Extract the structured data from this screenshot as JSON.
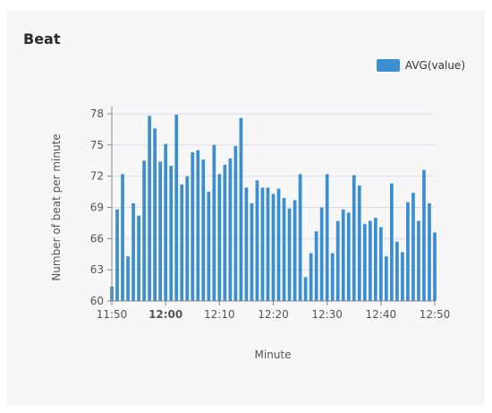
{
  "widget": {
    "title": "Beat"
  },
  "chart_data": {
    "type": "bar",
    "title": "",
    "xlabel": "Minute",
    "ylabel": "Number of beat per minute",
    "ylim": [
      60,
      78
    ],
    "y_ticks": [
      60,
      63,
      66,
      69,
      72,
      75,
      78
    ],
    "x_ticks": [
      {
        "label": "11:50",
        "index": 0,
        "bold": false
      },
      {
        "label": "12:00",
        "index": 10,
        "bold": true
      },
      {
        "label": "12:10",
        "index": 20,
        "bold": false
      },
      {
        "label": "12:20",
        "index": 30,
        "bold": false
      },
      {
        "label": "12:30",
        "index": 40,
        "bold": false
      },
      {
        "label": "12:40",
        "index": 50,
        "bold": false
      },
      {
        "label": "12:50",
        "index": 60,
        "bold": false
      }
    ],
    "legend_position": "top-right",
    "grid": true,
    "series": [
      {
        "name": "AVG(value)",
        "color": "#3b8fd1",
        "values": [
          61.4,
          68.8,
          72.2,
          64.3,
          69.4,
          68.2,
          73.5,
          77.8,
          76.6,
          73.4,
          75.1,
          73.0,
          77.9,
          71.2,
          72.0,
          74.3,
          74.5,
          73.6,
          70.5,
          75.0,
          72.2,
          73.1,
          73.7,
          74.9,
          77.6,
          70.9,
          69.4,
          71.6,
          70.9,
          70.9,
          70.3,
          70.8,
          69.9,
          68.9,
          69.7,
          72.2,
          62.3,
          64.6,
          66.7,
          69.0,
          72.2,
          64.6,
          67.7,
          68.8,
          68.5,
          72.1,
          71.1,
          67.4,
          67.7,
          68.0,
          67.1,
          64.3,
          71.3,
          65.7,
          64.7,
          69.5,
          70.4,
          67.7,
          72.6,
          69.4,
          66.6
        ]
      }
    ]
  }
}
